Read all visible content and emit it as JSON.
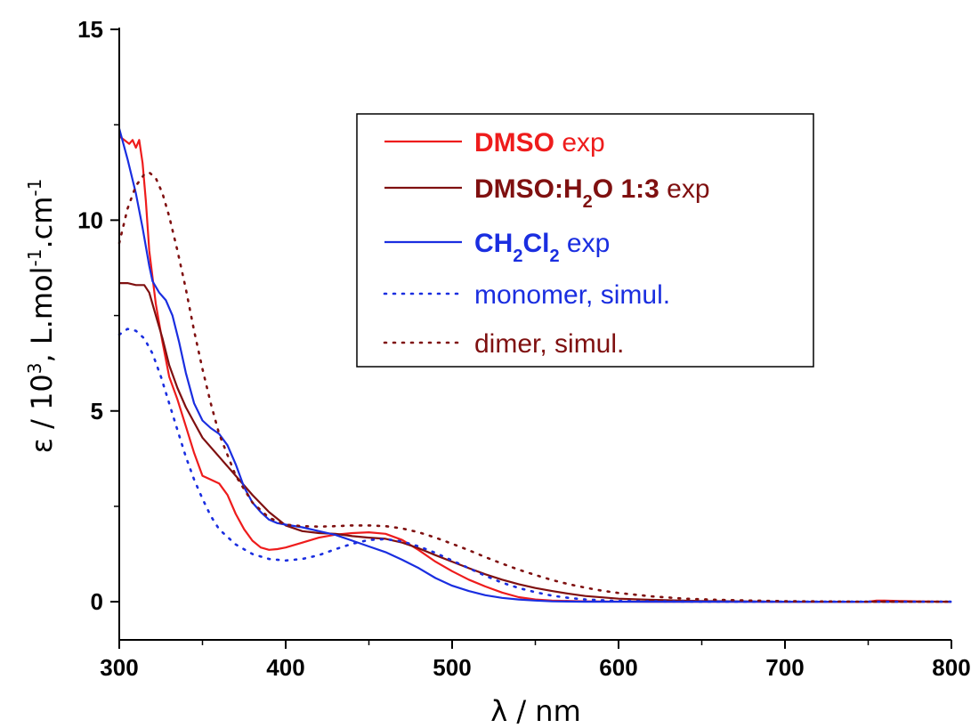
{
  "chart_data": {
    "type": "line",
    "xlabel": "λ / nm",
    "ylabel_parts": [
      "ε / 10",
      "3",
      ", L.mol",
      "-1",
      ".cm",
      "-1"
    ],
    "xlim": [
      300,
      800
    ],
    "ylim": [
      -1,
      15
    ],
    "x_ticks": [
      300,
      400,
      500,
      600,
      700,
      800
    ],
    "y_ticks": [
      0,
      5,
      10,
      15
    ],
    "grid": false,
    "legend_position": "top-right",
    "legend": [
      {
        "id": "dmso",
        "parts": [
          {
            "text": "DMSO",
            "bold": true
          },
          {
            "text": " exp"
          }
        ]
      },
      {
        "id": "dmso_h2o",
        "parts": [
          {
            "text": "DMSO:H",
            "bold": true
          },
          {
            "text": "2",
            "bold": true,
            "sub": true
          },
          {
            "text": "O 1:3",
            "bold": true
          },
          {
            "text": " exp"
          }
        ]
      },
      {
        "id": "ch2cl2",
        "parts": [
          {
            "text": "CH",
            "bold": true
          },
          {
            "text": "2",
            "bold": true,
            "sub": true
          },
          {
            "text": "Cl",
            "bold": true
          },
          {
            "text": "2",
            "bold": true,
            "sub": true
          },
          {
            "text": " exp"
          }
        ]
      },
      {
        "id": "monomer",
        "parts": [
          {
            "text": "monomer, simul."
          }
        ]
      },
      {
        "id": "dimer",
        "parts": [
          {
            "text": "dimer, simul."
          }
        ]
      }
    ],
    "series": [
      {
        "id": "dmso",
        "color": "#ee1c1c",
        "dash": "solid",
        "points": [
          [
            300,
            12.2
          ],
          [
            303,
            12.1
          ],
          [
            306,
            12.0
          ],
          [
            308,
            12.1
          ],
          [
            310,
            11.9
          ],
          [
            312,
            12.1
          ],
          [
            314,
            11.5
          ],
          [
            316,
            10.5
          ],
          [
            318,
            9.2
          ],
          [
            322,
            7.8
          ],
          [
            326,
            6.8
          ],
          [
            330,
            5.9
          ],
          [
            335,
            5.3
          ],
          [
            340,
            4.6
          ],
          [
            345,
            3.9
          ],
          [
            350,
            3.3
          ],
          [
            355,
            3.2
          ],
          [
            360,
            3.1
          ],
          [
            365,
            2.8
          ],
          [
            370,
            2.3
          ],
          [
            375,
            1.9
          ],
          [
            380,
            1.6
          ],
          [
            385,
            1.42
          ],
          [
            390,
            1.36
          ],
          [
            395,
            1.38
          ],
          [
            400,
            1.42
          ],
          [
            410,
            1.55
          ],
          [
            420,
            1.68
          ],
          [
            430,
            1.76
          ],
          [
            440,
            1.8
          ],
          [
            450,
            1.82
          ],
          [
            460,
            1.78
          ],
          [
            470,
            1.62
          ],
          [
            480,
            1.35
          ],
          [
            490,
            1.05
          ],
          [
            500,
            0.8
          ],
          [
            510,
            0.58
          ],
          [
            520,
            0.4
          ],
          [
            530,
            0.24
          ],
          [
            540,
            0.12
          ],
          [
            550,
            0.06
          ],
          [
            560,
            0.03
          ],
          [
            580,
            0.01
          ],
          [
            620,
            0.0
          ],
          [
            700,
            0.0
          ],
          [
            750,
            0.0
          ],
          [
            755,
            0.03
          ],
          [
            760,
            0.03
          ],
          [
            770,
            0.02
          ],
          [
            780,
            0.01
          ],
          [
            800,
            0.0
          ]
        ]
      },
      {
        "id": "dmso_h2o",
        "color": "#7f1010",
        "dash": "solid",
        "points": [
          [
            300,
            8.35
          ],
          [
            305,
            8.35
          ],
          [
            310,
            8.3
          ],
          [
            315,
            8.3
          ],
          [
            318,
            8.1
          ],
          [
            322,
            7.5
          ],
          [
            326,
            6.9
          ],
          [
            330,
            6.2
          ],
          [
            335,
            5.6
          ],
          [
            340,
            5.1
          ],
          [
            345,
            4.7
          ],
          [
            350,
            4.3
          ],
          [
            360,
            3.8
          ],
          [
            370,
            3.3
          ],
          [
            380,
            2.8
          ],
          [
            390,
            2.35
          ],
          [
            400,
            2.0
          ],
          [
            410,
            1.85
          ],
          [
            420,
            1.8
          ],
          [
            430,
            1.78
          ],
          [
            440,
            1.72
          ],
          [
            450,
            1.68
          ],
          [
            460,
            1.65
          ],
          [
            470,
            1.55
          ],
          [
            480,
            1.4
          ],
          [
            490,
            1.22
          ],
          [
            500,
            1.05
          ],
          [
            510,
            0.88
          ],
          [
            520,
            0.72
          ],
          [
            530,
            0.58
          ],
          [
            540,
            0.46
          ],
          [
            550,
            0.36
          ],
          [
            560,
            0.28
          ],
          [
            570,
            0.21
          ],
          [
            580,
            0.15
          ],
          [
            600,
            0.08
          ],
          [
            620,
            0.05
          ],
          [
            650,
            0.02
          ],
          [
            700,
            0.0
          ],
          [
            800,
            0.0
          ]
        ]
      },
      {
        "id": "ch2cl2",
        "color": "#1a2ee0",
        "dash": "solid",
        "points": [
          [
            300,
            12.4
          ],
          [
            305,
            11.6
          ],
          [
            310,
            10.7
          ],
          [
            314,
            9.8
          ],
          [
            318,
            8.8
          ],
          [
            320,
            8.4
          ],
          [
            324,
            8.1
          ],
          [
            328,
            7.9
          ],
          [
            332,
            7.5
          ],
          [
            336,
            6.8
          ],
          [
            340,
            6.0
          ],
          [
            345,
            5.2
          ],
          [
            350,
            4.75
          ],
          [
            355,
            4.55
          ],
          [
            360,
            4.4
          ],
          [
            365,
            4.1
          ],
          [
            370,
            3.6
          ],
          [
            375,
            3.0
          ],
          [
            380,
            2.6
          ],
          [
            385,
            2.35
          ],
          [
            390,
            2.15
          ],
          [
            395,
            2.06
          ],
          [
            400,
            2.02
          ],
          [
            410,
            1.95
          ],
          [
            420,
            1.85
          ],
          [
            430,
            1.75
          ],
          [
            440,
            1.6
          ],
          [
            450,
            1.45
          ],
          [
            460,
            1.3
          ],
          [
            470,
            1.1
          ],
          [
            480,
            0.88
          ],
          [
            490,
            0.62
          ],
          [
            500,
            0.42
          ],
          [
            510,
            0.28
          ],
          [
            520,
            0.17
          ],
          [
            530,
            0.1
          ],
          [
            540,
            0.06
          ],
          [
            550,
            0.03
          ],
          [
            560,
            0.01
          ],
          [
            580,
            0.0
          ],
          [
            750,
            0.0
          ]
        ]
      },
      {
        "id": "monomer",
        "color": "#1a2ee0",
        "dash": "dotted",
        "points": [
          [
            300,
            7.0
          ],
          [
            305,
            7.15
          ],
          [
            310,
            7.1
          ],
          [
            315,
            6.9
          ],
          [
            320,
            6.5
          ],
          [
            325,
            5.9
          ],
          [
            330,
            5.2
          ],
          [
            335,
            4.5
          ],
          [
            340,
            3.8
          ],
          [
            345,
            3.2
          ],
          [
            350,
            2.7
          ],
          [
            355,
            2.25
          ],
          [
            360,
            1.9
          ],
          [
            370,
            1.5
          ],
          [
            380,
            1.25
          ],
          [
            390,
            1.12
          ],
          [
            400,
            1.08
          ],
          [
            410,
            1.12
          ],
          [
            420,
            1.22
          ],
          [
            430,
            1.38
          ],
          [
            440,
            1.52
          ],
          [
            450,
            1.62
          ],
          [
            460,
            1.64
          ],
          [
            470,
            1.58
          ],
          [
            480,
            1.45
          ],
          [
            490,
            1.28
          ],
          [
            500,
            1.08
          ],
          [
            510,
            0.88
          ],
          [
            520,
            0.68
          ],
          [
            530,
            0.5
          ],
          [
            540,
            0.36
          ],
          [
            550,
            0.25
          ],
          [
            560,
            0.16
          ],
          [
            570,
            0.1
          ],
          [
            580,
            0.06
          ],
          [
            600,
            0.02
          ],
          [
            620,
            0.01
          ],
          [
            650,
            0.0
          ],
          [
            800,
            0.0
          ]
        ]
      },
      {
        "id": "dimer",
        "color": "#7f1010",
        "dash": "dotted",
        "points": [
          [
            300,
            9.4
          ],
          [
            305,
            10.3
          ],
          [
            310,
            10.9
          ],
          [
            315,
            11.2
          ],
          [
            318,
            11.25
          ],
          [
            322,
            11.1
          ],
          [
            326,
            10.7
          ],
          [
            330,
            10.1
          ],
          [
            335,
            9.2
          ],
          [
            340,
            8.2
          ],
          [
            345,
            7.1
          ],
          [
            350,
            6.1
          ],
          [
            355,
            5.2
          ],
          [
            360,
            4.4
          ],
          [
            370,
            3.3
          ],
          [
            380,
            2.6
          ],
          [
            390,
            2.2
          ],
          [
            400,
            2.02
          ],
          [
            410,
            1.98
          ],
          [
            420,
            1.97
          ],
          [
            430,
            1.98
          ],
          [
            440,
            2.0
          ],
          [
            450,
            2.0
          ],
          [
            460,
            1.98
          ],
          [
            470,
            1.92
          ],
          [
            480,
            1.82
          ],
          [
            490,
            1.68
          ],
          [
            500,
            1.52
          ],
          [
            510,
            1.35
          ],
          [
            520,
            1.17
          ],
          [
            530,
            1.0
          ],
          [
            540,
            0.84
          ],
          [
            550,
            0.7
          ],
          [
            560,
            0.57
          ],
          [
            570,
            0.46
          ],
          [
            580,
            0.37
          ],
          [
            590,
            0.29
          ],
          [
            600,
            0.23
          ],
          [
            620,
            0.14
          ],
          [
            640,
            0.08
          ],
          [
            660,
            0.05
          ],
          [
            680,
            0.03
          ],
          [
            700,
            0.015
          ],
          [
            750,
            0.0
          ],
          [
            800,
            0.0
          ]
        ]
      }
    ]
  }
}
